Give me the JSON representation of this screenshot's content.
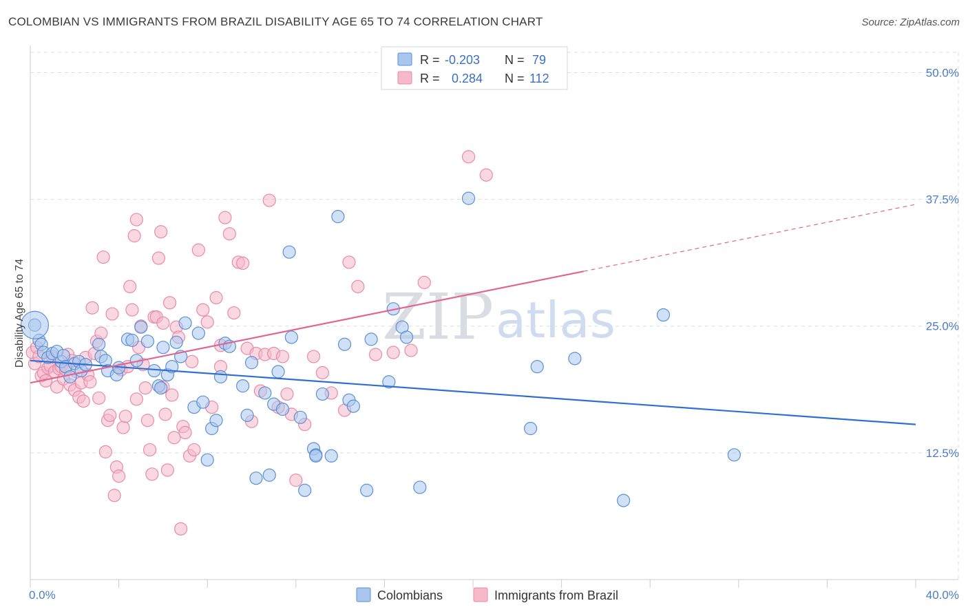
{
  "title": "COLOMBIAN VS IMMIGRANTS FROM BRAZIL DISABILITY AGE 65 TO 74 CORRELATION CHART",
  "source": "Source: ZipAtlas.com",
  "watermark": {
    "zip": "ZIP",
    "atlas": "atlas"
  },
  "colors": {
    "blue_fill": "#a9c6ee",
    "blue_stroke": "#5b8fd6",
    "blue_line": "#2f6fcf",
    "pink_fill": "#f6b8cb",
    "pink_stroke": "#e88aa8",
    "pink_line": "#e06592",
    "grid": "#dddddd",
    "tick_label": "#4a7cc7"
  },
  "legend": {
    "rows": [
      {
        "r_label": "R =",
        "r_value": "-0.203",
        "n_label": "N =",
        "n_value": "79"
      },
      {
        "r_label": "R =",
        "r_value": "0.284",
        "n_label": "N =",
        "n_value": "112"
      }
    ]
  },
  "bottom_legend": [
    "Colombians",
    "Immigrants from Brazil"
  ],
  "chart_data": {
    "type": "scatter",
    "title": "COLOMBIAN VS IMMIGRANTS FROM BRAZIL DISABILITY AGE 65 TO 74 CORRELATION CHART",
    "ylabel": "Disability Age 65 to 74",
    "xlabel": "",
    "xlim": [
      0,
      40
    ],
    "ylim": [
      0,
      52
    ],
    "y_ticks": [
      {
        "value": 12.5,
        "label": "12.5%"
      },
      {
        "value": 25.0,
        "label": "25.0%"
      },
      {
        "value": 37.5,
        "label": "37.5%"
      },
      {
        "value": 50.0,
        "label": "50.0%"
      }
    ],
    "x_tick_labels": [
      {
        "value": 0,
        "label": "0.0%"
      },
      {
        "value": 40,
        "label": "40.0%"
      }
    ],
    "grid": true,
    "legend_position": "top-center",
    "series": [
      {
        "name": "Colombians",
        "color": "blue",
        "points": [
          [
            0.2,
            25.1
          ],
          [
            0.4,
            23.6
          ],
          [
            0.5,
            23.2
          ],
          [
            0.6,
            22.4
          ],
          [
            0.8,
            21.9
          ],
          [
            1.0,
            22.3
          ],
          [
            1.2,
            22.5
          ],
          [
            1.4,
            21.5
          ],
          [
            1.5,
            22.1
          ],
          [
            1.6,
            21.0
          ],
          [
            1.8,
            20.0
          ],
          [
            2.0,
            21.3
          ],
          [
            2.2,
            21.5
          ],
          [
            2.3,
            20.6
          ],
          [
            2.5,
            21.2
          ],
          [
            3.1,
            23.2
          ],
          [
            3.2,
            22.0
          ],
          [
            3.4,
            21.6
          ],
          [
            3.5,
            20.6
          ],
          [
            3.9,
            20.2
          ],
          [
            4.0,
            20.9
          ],
          [
            4.4,
            23.7
          ],
          [
            4.6,
            23.6
          ],
          [
            4.8,
            21.6
          ],
          [
            5.0,
            24.9
          ],
          [
            5.3,
            23.5
          ],
          [
            5.6,
            20.6
          ],
          [
            5.8,
            19.1
          ],
          [
            5.9,
            18.9
          ],
          [
            6.0,
            22.9
          ],
          [
            6.2,
            20.2
          ],
          [
            6.4,
            21.0
          ],
          [
            6.6,
            23.4
          ],
          [
            6.8,
            22.0
          ],
          [
            7.0,
            25.3
          ],
          [
            7.4,
            17.0
          ],
          [
            7.6,
            24.3
          ],
          [
            7.8,
            17.5
          ],
          [
            8.0,
            11.8
          ],
          [
            8.2,
            14.9
          ],
          [
            8.4,
            15.7
          ],
          [
            8.6,
            20.0
          ],
          [
            8.8,
            23.3
          ],
          [
            9.0,
            23.0
          ],
          [
            9.6,
            19.1
          ],
          [
            9.8,
            16.2
          ],
          [
            10.0,
            21.4
          ],
          [
            10.2,
            10.0
          ],
          [
            10.6,
            18.4
          ],
          [
            10.8,
            10.3
          ],
          [
            11.0,
            17.3
          ],
          [
            11.2,
            20.5
          ],
          [
            11.4,
            16.8
          ],
          [
            11.7,
            32.3
          ],
          [
            11.8,
            23.9
          ],
          [
            12.2,
            16.0
          ],
          [
            12.4,
            8.8
          ],
          [
            12.8,
            12.9
          ],
          [
            12.9,
            12.3
          ],
          [
            13.2,
            18.3
          ],
          [
            12.9,
            12.2
          ],
          [
            13.6,
            12.2
          ],
          [
            13.9,
            35.8
          ],
          [
            14.2,
            23.2
          ],
          [
            14.4,
            17.7
          ],
          [
            14.6,
            17.1
          ],
          [
            15.2,
            8.8
          ],
          [
            15.4,
            23.7
          ],
          [
            16.2,
            19.5
          ],
          [
            16.4,
            26.7
          ],
          [
            16.8,
            24.9
          ],
          [
            17.0,
            23.9
          ],
          [
            17.6,
            9.1
          ],
          [
            19.8,
            37.6
          ],
          [
            22.6,
            14.9
          ],
          [
            22.9,
            21.0
          ],
          [
            24.6,
            21.8
          ],
          [
            28.6,
            26.1
          ],
          [
            26.8,
            7.8
          ],
          [
            31.8,
            12.3
          ]
        ]
      },
      {
        "name": "Immigrants from Brazil",
        "color": "pink",
        "points": [
          [
            0.1,
            22.4
          ],
          [
            0.2,
            21.3
          ],
          [
            0.3,
            22.9
          ],
          [
            0.4,
            22.0
          ],
          [
            0.5,
            20.1
          ],
          [
            0.6,
            20.4
          ],
          [
            0.7,
            19.6
          ],
          [
            0.8,
            20.9
          ],
          [
            0.9,
            21.1
          ],
          [
            1.0,
            22.0
          ],
          [
            1.1,
            20.5
          ],
          [
            1.2,
            19.0
          ],
          [
            1.3,
            20.8
          ],
          [
            1.4,
            21.0
          ],
          [
            1.5,
            19.8
          ],
          [
            1.6,
            20.7
          ],
          [
            1.7,
            22.2
          ],
          [
            1.8,
            19.2
          ],
          [
            1.9,
            21.6
          ],
          [
            2.0,
            18.7
          ],
          [
            2.1,
            20.5
          ],
          [
            2.2,
            18.0
          ],
          [
            2.3,
            19.4
          ],
          [
            2.4,
            17.6
          ],
          [
            2.5,
            21.9
          ],
          [
            2.6,
            20.2
          ],
          [
            2.7,
            19.5
          ],
          [
            2.8,
            26.8
          ],
          [
            2.9,
            22.3
          ],
          [
            3.0,
            23.5
          ],
          [
            3.1,
            17.9
          ],
          [
            3.2,
            24.3
          ],
          [
            3.3,
            31.8
          ],
          [
            3.4,
            12.6
          ],
          [
            3.5,
            15.7
          ],
          [
            3.6,
            16.2
          ],
          [
            3.7,
            26.2
          ],
          [
            3.8,
            8.3
          ],
          [
            3.9,
            11.1
          ],
          [
            4.0,
            10.2
          ],
          [
            4.1,
            20.7
          ],
          [
            4.2,
            15.0
          ],
          [
            4.3,
            16.1
          ],
          [
            4.4,
            21.0
          ],
          [
            4.5,
            28.9
          ],
          [
            4.6,
            26.6
          ],
          [
            4.7,
            33.9
          ],
          [
            4.8,
            35.5
          ],
          [
            4.9,
            22.9
          ],
          [
            5.0,
            25.0
          ],
          [
            5.1,
            21.2
          ],
          [
            5.2,
            18.9
          ],
          [
            5.3,
            15.7
          ],
          [
            5.4,
            12.8
          ],
          [
            5.5,
            10.4
          ],
          [
            5.6,
            25.9
          ],
          [
            5.7,
            25.9
          ],
          [
            5.8,
            31.7
          ],
          [
            5.9,
            34.3
          ],
          [
            6.0,
            19.0
          ],
          [
            6.1,
            16.3
          ],
          [
            6.2,
            10.8
          ],
          [
            6.3,
            27.3
          ],
          [
            6.4,
            18.2
          ],
          [
            6.5,
            14.0
          ],
          [
            6.6,
            24.9
          ],
          [
            6.7,
            23.9
          ],
          [
            6.8,
            5.0
          ],
          [
            6.9,
            15.1
          ],
          [
            7.0,
            14.5
          ],
          [
            7.2,
            12.2
          ],
          [
            7.4,
            12.8
          ],
          [
            7.6,
            32.5
          ],
          [
            7.8,
            26.6
          ],
          [
            8.0,
            25.4
          ],
          [
            8.2,
            17.0
          ],
          [
            8.4,
            27.8
          ],
          [
            8.6,
            21.0
          ],
          [
            8.8,
            35.7
          ],
          [
            9.0,
            34.1
          ],
          [
            9.2,
            26.3
          ],
          [
            9.4,
            31.3
          ],
          [
            9.6,
            31.2
          ],
          [
            9.8,
            22.8
          ],
          [
            10.0,
            15.6
          ],
          [
            10.2,
            22.3
          ],
          [
            10.4,
            18.6
          ],
          [
            10.6,
            22.2
          ],
          [
            10.8,
            37.4
          ],
          [
            11.0,
            22.3
          ],
          [
            11.2,
            17.0
          ],
          [
            11.4,
            22.0
          ],
          [
            11.6,
            18.3
          ],
          [
            11.8,
            16.3
          ],
          [
            12.0,
            9.8
          ],
          [
            12.4,
            15.3
          ],
          [
            12.8,
            22.0
          ],
          [
            13.6,
            18.4
          ],
          [
            14.2,
            16.7
          ],
          [
            14.4,
            31.3
          ],
          [
            14.8,
            28.9
          ],
          [
            15.6,
            22.2
          ],
          [
            16.4,
            22.4
          ],
          [
            17.2,
            22.6
          ],
          [
            17.8,
            29.3
          ],
          [
            19.8,
            41.7
          ],
          [
            20.6,
            39.9
          ],
          [
            13.2,
            20.4
          ],
          [
            8.6,
            23.1
          ],
          [
            6.0,
            25.3
          ],
          [
            4.8,
            17.8
          ],
          [
            7.3,
            21.5
          ]
        ]
      }
    ],
    "trend_lines": [
      {
        "series": "Colombians",
        "x": [
          0,
          40
        ],
        "y": [
          21.6,
          15.3
        ],
        "dashed_from": null
      },
      {
        "series": "Immigrants from Brazil",
        "x": [
          0,
          40
        ],
        "y": [
          19.4,
          37.0
        ],
        "solid_until": 25.0
      }
    ]
  }
}
